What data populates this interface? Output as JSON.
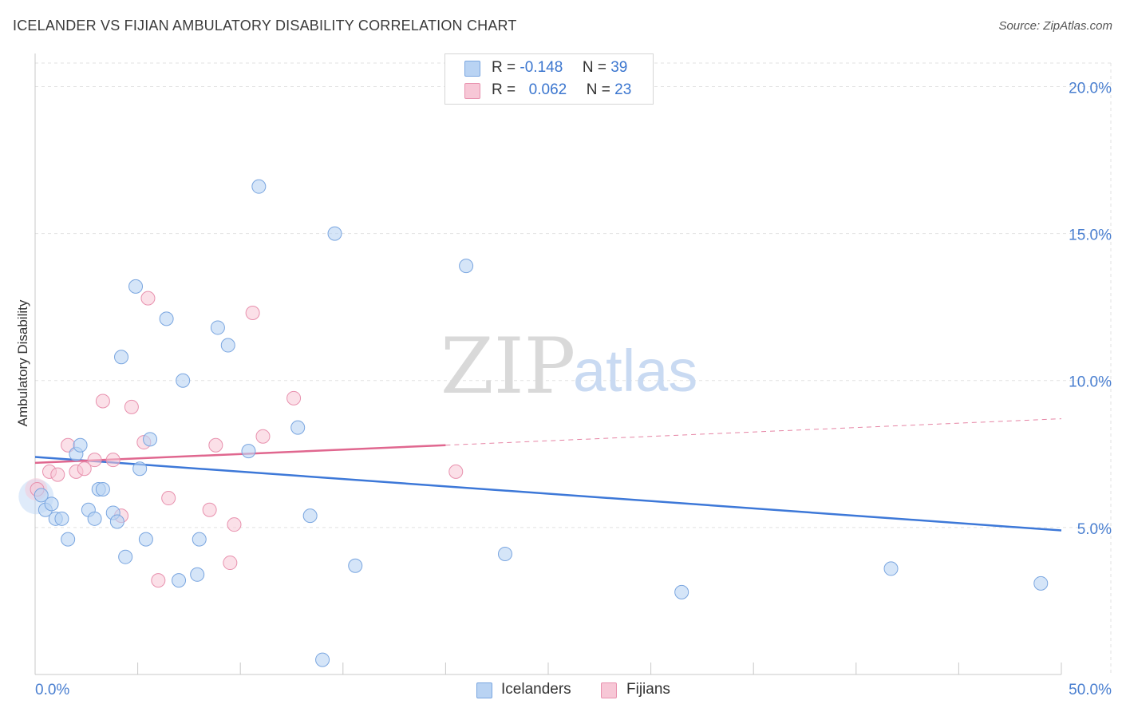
{
  "title": "ICELANDER VS FIJIAN AMBULATORY DISABILITY CORRELATION CHART",
  "source": "Source: ZipAtlas.com",
  "watermark": {
    "zip": "ZIP",
    "atlas": "atlas"
  },
  "legend_top": {
    "rows": [
      {
        "r_label": "R =",
        "r_value": "-0.148",
        "n_label": "N =",
        "n_value": "39"
      },
      {
        "r_label": "R =",
        "r_value": "0.062",
        "n_label": "N =",
        "n_value": "23"
      }
    ]
  },
  "legend_bottom": {
    "series1": "Icelanders",
    "series2": "Fijians"
  },
  "colors": {
    "blue_fill": "#b9d3f3",
    "blue_stroke": "#7aa6e0",
    "blue_line": "#3d78d8",
    "pink_fill": "#f7c7d6",
    "pink_stroke": "#e891ae",
    "pink_line": "#e0678f",
    "tick_text": "#4a7fd0",
    "grid": "#e2e2e2"
  },
  "chart_data": {
    "type": "scatter",
    "title": "ICELANDER VS FIJIAN AMBULATORY DISABILITY CORRELATION CHART",
    "xlabel": "",
    "ylabel": "Ambulatory Disability",
    "xlim": [
      0,
      50
    ],
    "ylim": [
      0,
      20.8
    ],
    "x_tick_labels": [
      "0.0%",
      "50.0%"
    ],
    "y_ticks": [
      5,
      10,
      15,
      20
    ],
    "y_tick_labels": [
      "5.0%",
      "10.0%",
      "15.0%",
      "20.0%"
    ],
    "series": [
      {
        "name": "Icelanders",
        "r": -0.148,
        "n": 39,
        "points": [
          [
            0.3,
            6.1
          ],
          [
            0.5,
            5.6
          ],
          [
            0.8,
            5.8
          ],
          [
            1.0,
            5.3
          ],
          [
            1.3,
            5.3
          ],
          [
            1.6,
            4.6
          ],
          [
            2.0,
            7.5
          ],
          [
            2.2,
            7.8
          ],
          [
            2.6,
            5.6
          ],
          [
            2.9,
            5.3
          ],
          [
            3.1,
            6.3
          ],
          [
            3.3,
            6.3
          ],
          [
            3.8,
            5.5
          ],
          [
            4.0,
            5.2
          ],
          [
            4.2,
            10.8
          ],
          [
            4.4,
            4.0
          ],
          [
            4.9,
            13.2
          ],
          [
            5.1,
            7.0
          ],
          [
            5.4,
            4.6
          ],
          [
            5.6,
            8.0
          ],
          [
            6.4,
            12.1
          ],
          [
            7.0,
            3.2
          ],
          [
            7.2,
            10.0
          ],
          [
            7.9,
            3.4
          ],
          [
            8.0,
            4.6
          ],
          [
            8.9,
            11.8
          ],
          [
            9.4,
            11.2
          ],
          [
            10.4,
            7.6
          ],
          [
            10.9,
            16.6
          ],
          [
            12.8,
            8.4
          ],
          [
            13.4,
            5.4
          ],
          [
            14.0,
            0.5
          ],
          [
            14.6,
            15.0
          ],
          [
            15.6,
            3.7
          ],
          [
            21.0,
            13.9
          ],
          [
            22.9,
            4.1
          ],
          [
            31.5,
            2.8
          ],
          [
            41.7,
            3.6
          ],
          [
            49.0,
            3.1
          ]
        ],
        "trend": {
          "x": [
            0,
            50
          ],
          "y": [
            7.4,
            4.9
          ]
        }
      },
      {
        "name": "Fijians",
        "r": 0.062,
        "n": 23,
        "points": [
          [
            0.1,
            6.3
          ],
          [
            0.7,
            6.9
          ],
          [
            1.1,
            6.8
          ],
          [
            1.6,
            7.8
          ],
          [
            2.0,
            6.9
          ],
          [
            2.4,
            7.0
          ],
          [
            2.9,
            7.3
          ],
          [
            3.3,
            9.3
          ],
          [
            3.8,
            7.3
          ],
          [
            4.2,
            5.4
          ],
          [
            4.7,
            9.1
          ],
          [
            5.3,
            7.9
          ],
          [
            5.5,
            12.8
          ],
          [
            6.0,
            3.2
          ],
          [
            6.5,
            6.0
          ],
          [
            8.5,
            5.6
          ],
          [
            8.8,
            7.8
          ],
          [
            9.5,
            3.8
          ],
          [
            9.7,
            5.1
          ],
          [
            10.6,
            12.3
          ],
          [
            11.1,
            8.1
          ],
          [
            12.6,
            9.4
          ],
          [
            20.5,
            6.9
          ]
        ],
        "trend_solid": {
          "x": [
            0,
            20
          ],
          "y": [
            7.2,
            7.8
          ]
        },
        "trend_dashed": {
          "x": [
            20,
            50
          ],
          "y": [
            7.8,
            8.7
          ]
        }
      }
    ]
  }
}
